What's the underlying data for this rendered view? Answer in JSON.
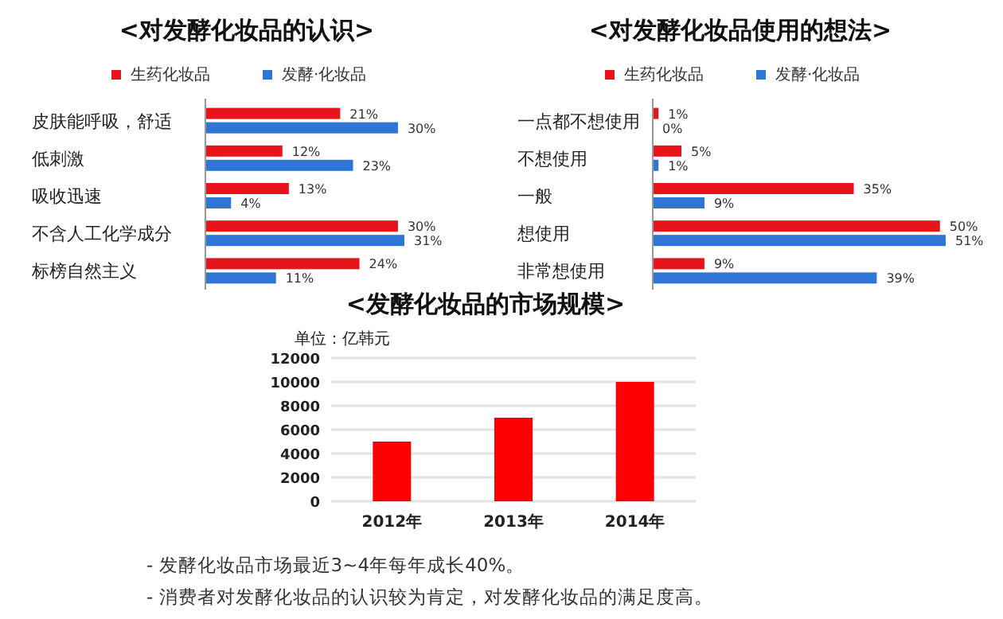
{
  "chart_data": [
    {
      "type": "bar",
      "orientation": "horizontal",
      "title": "<对发酵化妆品的认识>",
      "legend": "top",
      "categories": [
        "皮肤能呼吸，舒适",
        "低刺激",
        "吸收迅速",
        "不含人工化学成分",
        "标榜自然主义"
      ],
      "series": [
        {
          "name": "生药化妆品",
          "color": "#e8141c",
          "values": [
            21,
            12,
            13,
            30,
            24
          ],
          "value_labels": [
            "21%",
            "12%",
            "13%",
            "30%",
            "24%"
          ]
        },
        {
          "name": "发酵·化妆品",
          "color": "#2e75d6",
          "values": [
            30,
            23,
            4,
            31,
            11
          ],
          "value_labels": [
            "30%",
            "23%",
            "4%",
            "31%",
            "11%"
          ]
        }
      ]
    },
    {
      "type": "bar",
      "orientation": "horizontal",
      "title": "<对发酵化妆品使用的想法>",
      "legend": "top",
      "categories": [
        "一点都不想使用",
        "不想使用",
        "一般",
        "想使用",
        "非常想使用"
      ],
      "series": [
        {
          "name": "生药化妆品",
          "color": "#e8141c",
          "values": [
            1,
            5,
            35,
            50,
            9
          ],
          "value_labels": [
            "1%",
            "5%",
            "35%",
            "50%",
            "9%"
          ]
        },
        {
          "name": "发酵·化妆品",
          "color": "#2e75d6",
          "values": [
            0,
            1,
            9,
            51,
            39
          ],
          "value_labels": [
            "0%",
            "1%",
            "9%",
            "51%",
            "39%"
          ]
        }
      ]
    },
    {
      "type": "bar",
      "title": "<发酵化妆品的市场规模>",
      "ylabel": "单位：亿韩元",
      "categories": [
        "2012年",
        "2013年",
        "2014年"
      ],
      "values": [
        5000,
        7000,
        10000
      ],
      "color": "#ff0000",
      "ylim": [
        0,
        12000
      ],
      "yticks": [
        0,
        2000,
        4000,
        6000,
        8000,
        10000,
        12000
      ],
      "grid": "y",
      "annotations": [
        "- 发酵化妆品市场最近3~4年每年成长40%。",
        "- 消费者对发酵化妆品的认识较为肯定，对发酵化妆品的满足度高。"
      ]
    }
  ]
}
